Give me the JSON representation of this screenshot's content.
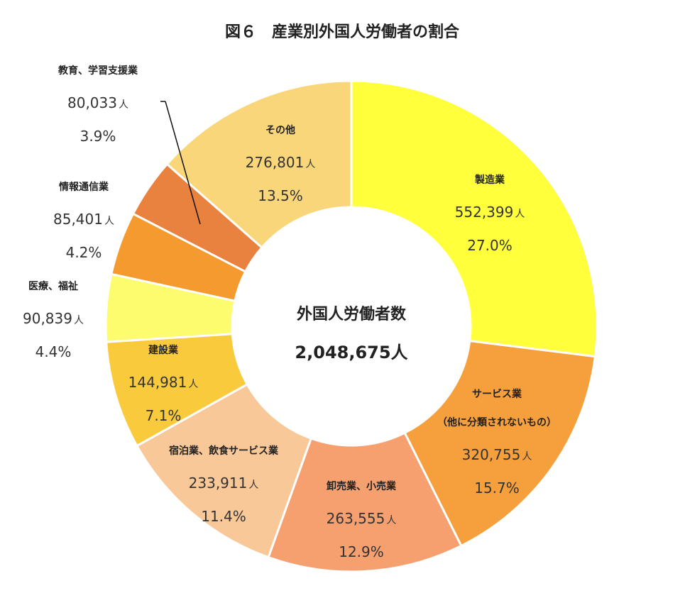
{
  "chart_data": {
    "type": "pie",
    "title": "図６　産業別外国人労働者の割合",
    "center_label": "外国人労働者数",
    "center_value": "2,048,675人",
    "unit": "人",
    "slices": [
      {
        "lines": [
          "製造業"
        ],
        "value": 552399,
        "value_label": "552,399",
        "percent": "27.0%",
        "color": "#ffff3c"
      },
      {
        "lines": [
          "サービス業",
          "（他に分類されないもの）"
        ],
        "value": 320755,
        "value_label": "320,755",
        "percent": "15.7%",
        "color": "#f5a03c"
      },
      {
        "lines": [
          "卸売業、小売業"
        ],
        "value": 263555,
        "value_label": "263,555",
        "percent": "12.9%",
        "color": "#f6a070"
      },
      {
        "lines": [
          "宿泊業、飲食サービス業"
        ],
        "value": 233911,
        "value_label": "233,911",
        "percent": "11.4%",
        "color": "#f8c898"
      },
      {
        "lines": [
          "建設業"
        ],
        "value": 144981,
        "value_label": "144,981",
        "percent": "7.1%",
        "color": "#f9cb3c"
      },
      {
        "lines": [
          "医療、福祉"
        ],
        "value": 90839,
        "value_label": "90,839",
        "percent": "4.4%",
        "color": "#fcfc6e"
      },
      {
        "lines": [
          "情報通信業"
        ],
        "value": 85401,
        "value_label": "85,401",
        "percent": "4.2%",
        "color": "#f59a2e"
      },
      {
        "lines": [
          "教育、学習支援業"
        ],
        "value": 80033,
        "value_label": "80,033",
        "percent": "3.9%",
        "color": "#e8823e"
      },
      {
        "lines": [
          "その他"
        ],
        "value": 276801,
        "value_label": "276,801",
        "percent": "13.5%",
        "color": "#f9d67a"
      }
    ]
  }
}
